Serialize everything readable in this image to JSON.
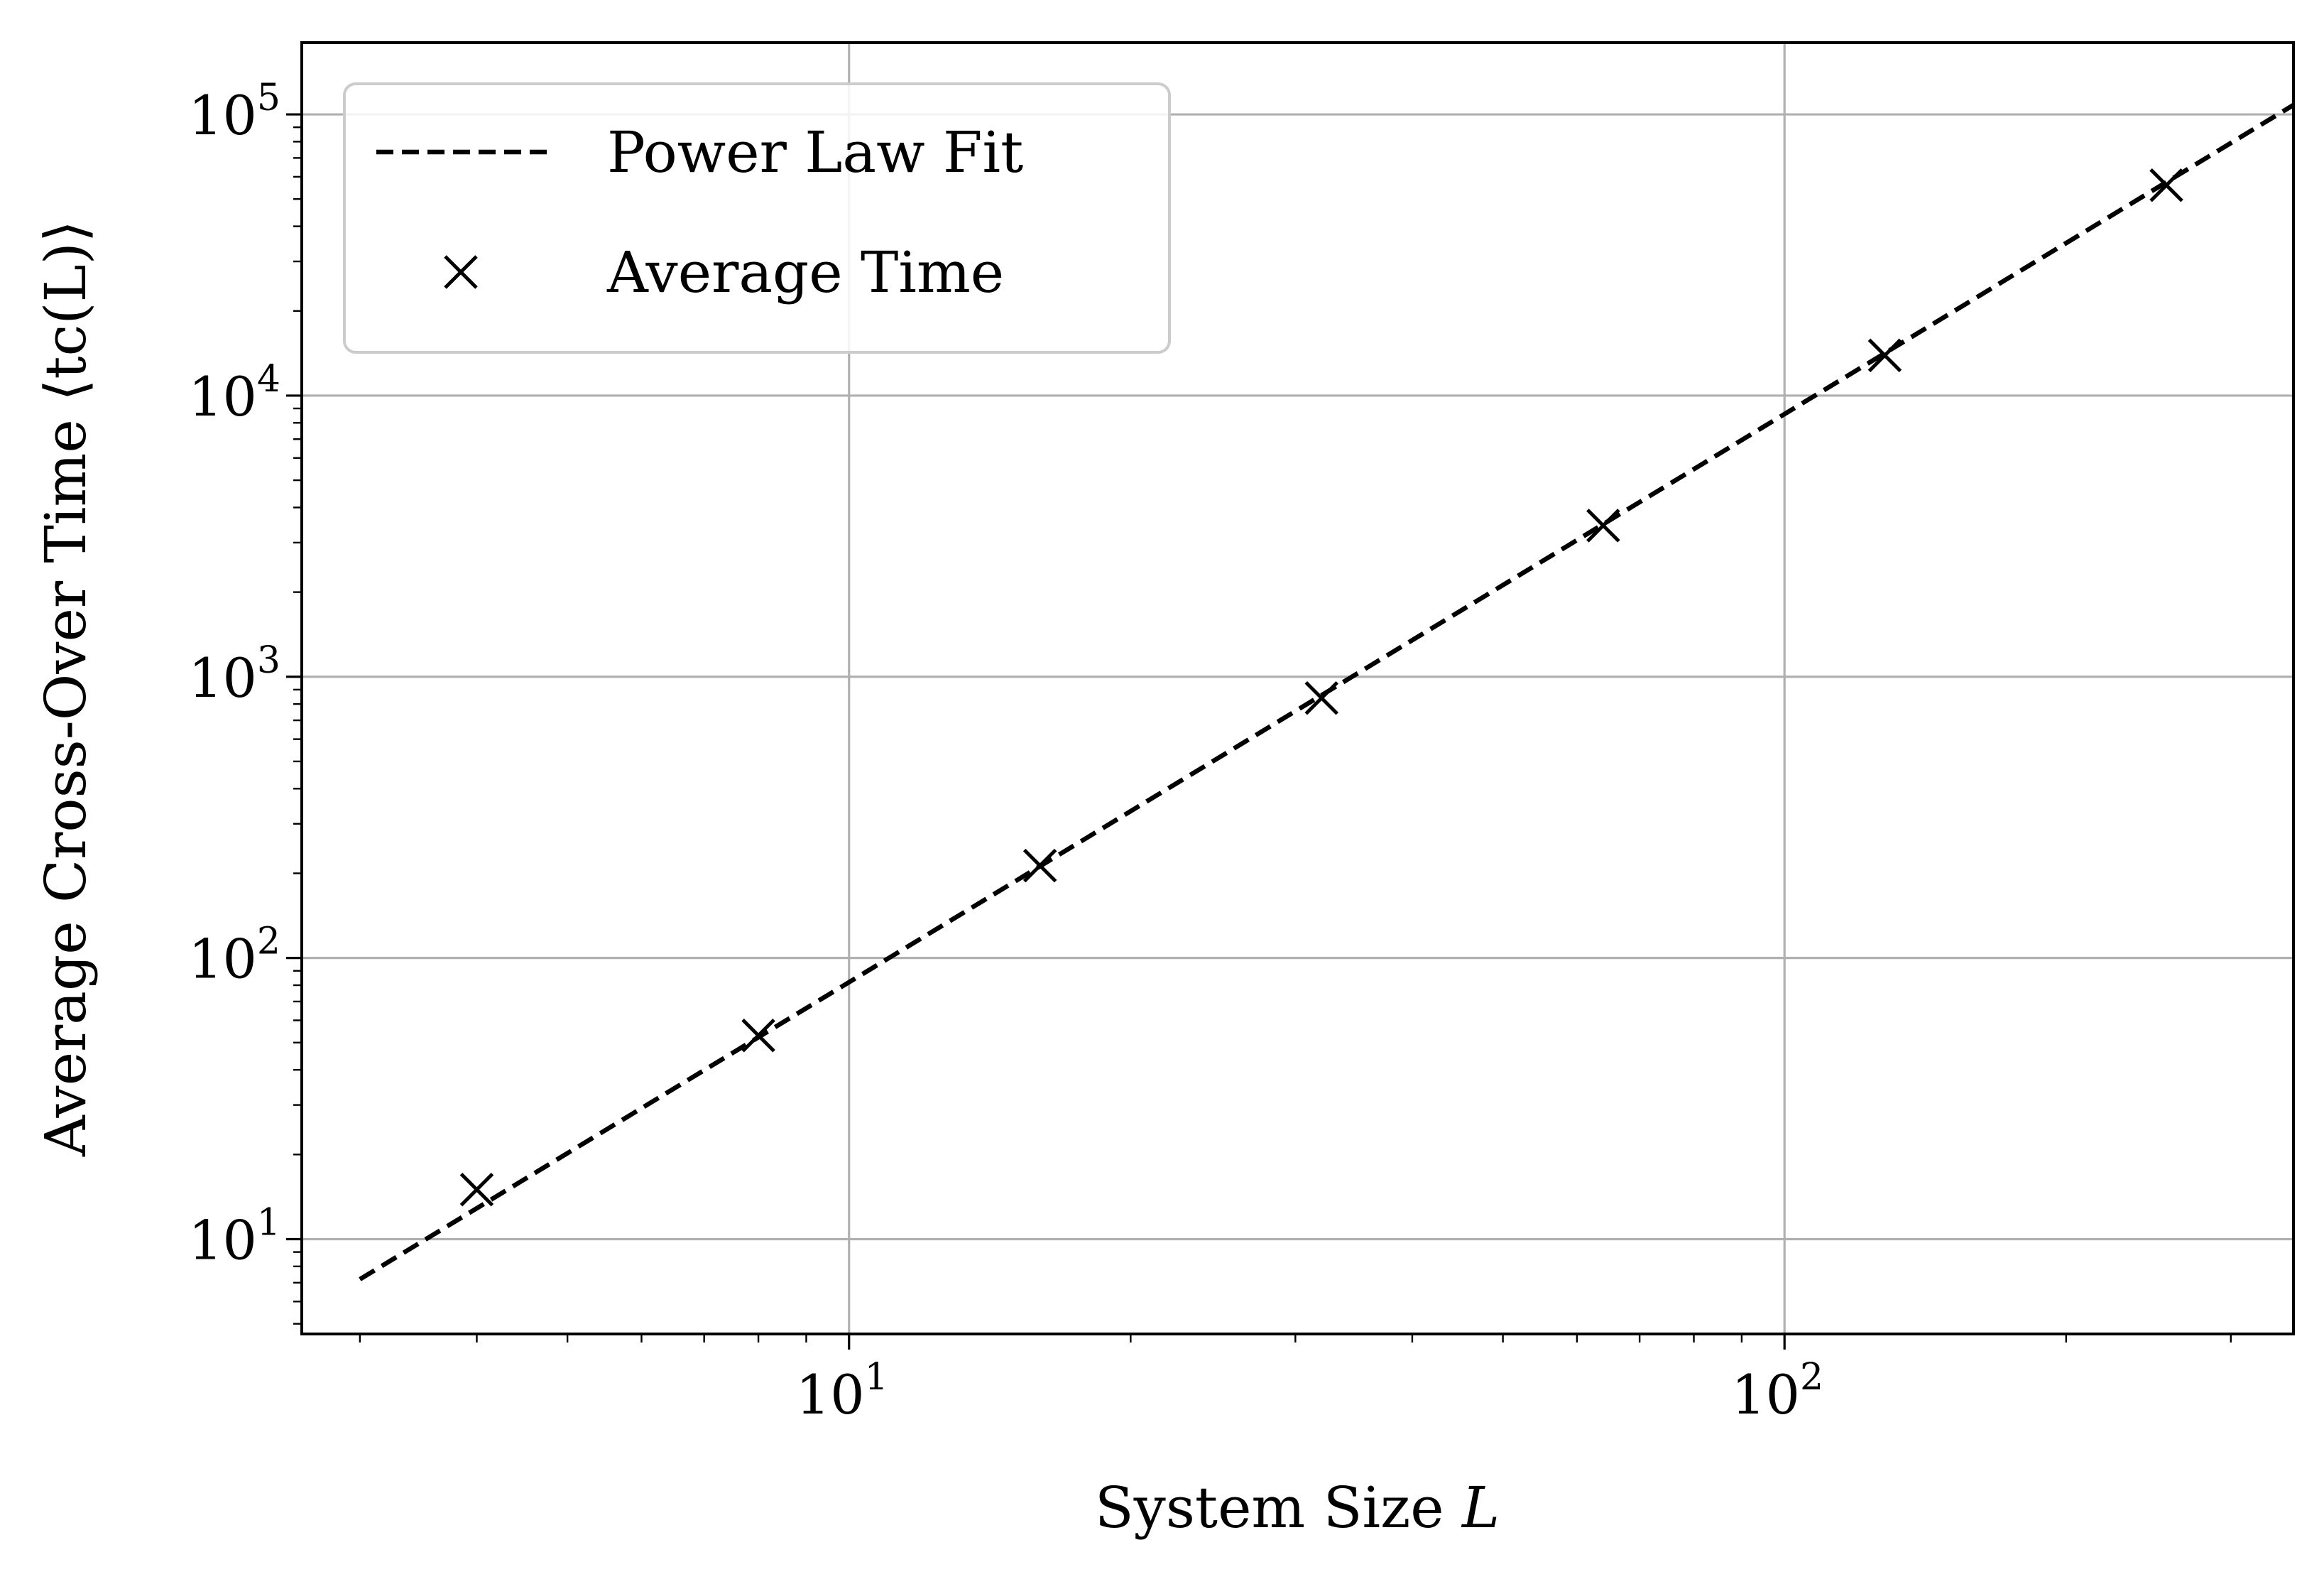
{
  "chart_data": {
    "type": "scatter",
    "xscale": "log",
    "yscale": "log",
    "xlim": [
      2.6,
      350
    ],
    "ylim": [
      4.6,
      180000
    ],
    "grid": true,
    "xlabel_text": "System Size ",
    "xlabel_var": "L",
    "ylabel": "Average Cross-Over Time ⟨tc(L)⟩",
    "x_ticks": [
      {
        "base": "10",
        "exp": "1",
        "value": 10
      },
      {
        "base": "10",
        "exp": "2",
        "value": 100
      }
    ],
    "y_ticks": [
      {
        "base": "10",
        "exp": "1",
        "value": 10
      },
      {
        "base": "10",
        "exp": "2",
        "value": 100
      },
      {
        "base": "10",
        "exp": "3",
        "value": 1000
      },
      {
        "base": "10",
        "exp": "4",
        "value": 10000
      },
      {
        "base": "10",
        "exp": "5",
        "value": 100000
      }
    ],
    "legend_position": "upper-left",
    "series": [
      {
        "name": "Power Law Fit",
        "kind": "line",
        "style": "dashed",
        "x": [
          3,
          350
        ],
        "y": [
          7.2,
          108000
        ]
      },
      {
        "name": "Average Time",
        "kind": "scatter",
        "marker": "x",
        "x": [
          4,
          8,
          16,
          32,
          64,
          128,
          256
        ],
        "y": [
          15,
          53,
          213,
          840,
          3450,
          13900,
          56000
        ]
      }
    ],
    "colors": {
      "line": "#000000",
      "grid": "#b0b0b0",
      "background": "#ffffff"
    }
  }
}
